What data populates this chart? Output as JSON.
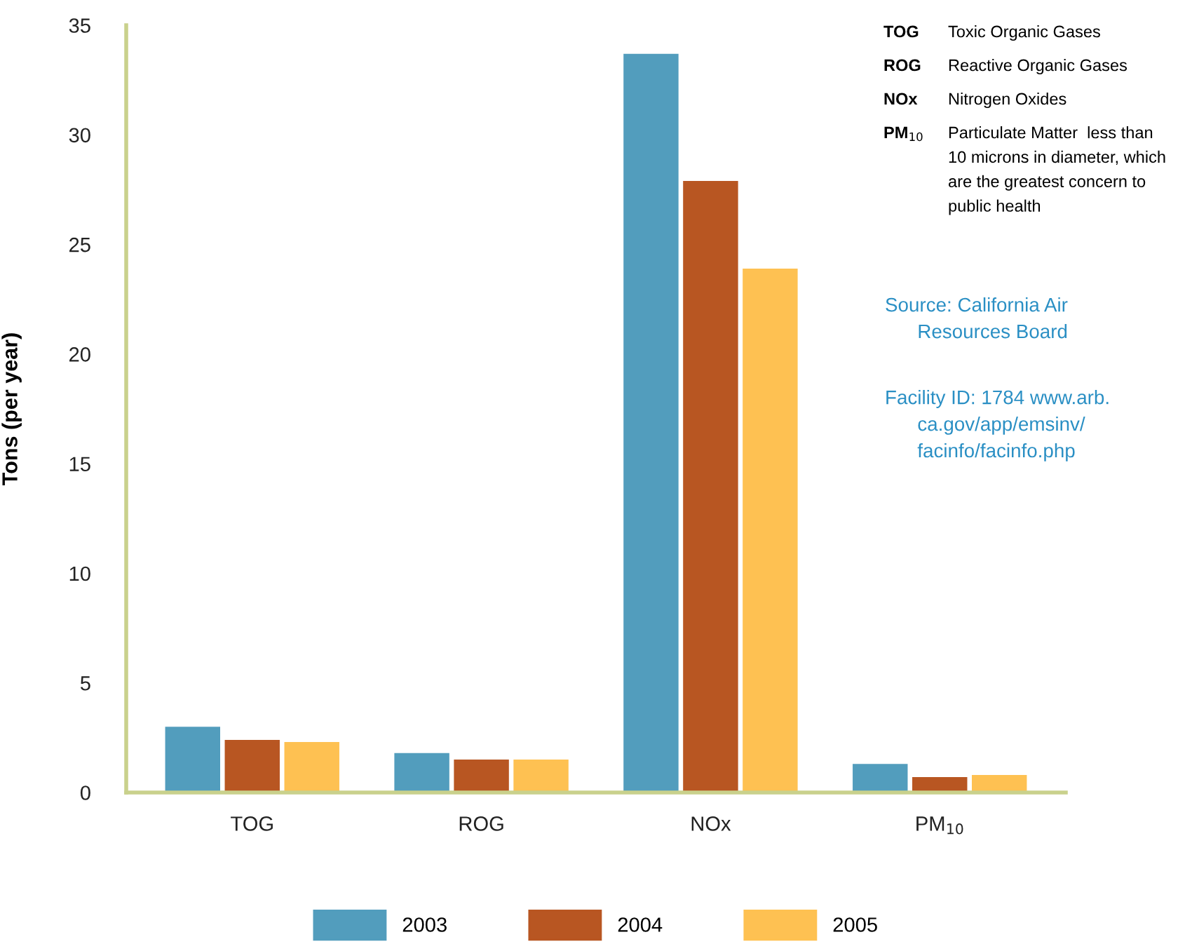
{
  "chart_data": {
    "type": "bar",
    "ylabel": "Tons (per year)",
    "categories": [
      "TOG",
      "ROG",
      "NOx",
      "PM$_{10}$"
    ],
    "series": [
      {
        "name": "2003",
        "color": "#529dbd",
        "values": [
          3.0,
          1.8,
          33.7,
          1.3
        ]
      },
      {
        "name": "2004",
        "color": "#b85622",
        "values": [
          2.4,
          1.5,
          27.9,
          0.7
        ]
      },
      {
        "name": "2005",
        "color": "#fec152",
        "values": [
          2.3,
          1.5,
          23.9,
          0.8
        ]
      }
    ],
    "ylim": [
      0,
      35
    ],
    "yticks": [
      0,
      5,
      10,
      15,
      20,
      25,
      30,
      35
    ],
    "grid": false,
    "legend": "bottom",
    "annotations": [
      "TOG",
      "Toxic Organic Gases",
      "ROG",
      "Reactive Organic Gases",
      "NOx",
      "Nitrogen Oxides",
      "PM$_{10}$",
      "Particulate Matter  less than\n10 microns in diameter, which\nare the greatest concern to\npublic health",
      "Source: California Air\n      Resources Board",
      "Facility ID: 1784 www.arb.\n      ca.gov/app/emsinv/\n      facinfo/facinfo.php"
    ]
  }
}
